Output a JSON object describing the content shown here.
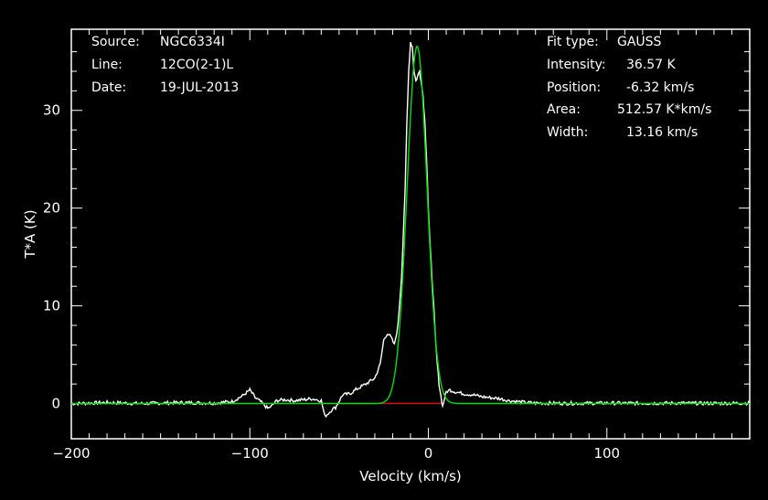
{
  "annotations": {
    "source_label": "Source:",
    "source_value": "NGC6334I",
    "line_label": "Line:",
    "line_value": "12CO(2-1)L",
    "date_label": "Date:",
    "date_value": "19-JUL-2013",
    "fit_type_label": "Fit type:",
    "fit_type_value": "GAUSS",
    "intensity_label": "Intensity:",
    "intensity_value": "36.57 K",
    "position_label": "Position:",
    "position_value": "-6.32 km/s",
    "area_label": "Area:",
    "area_value": "512.57 K*km/s",
    "width_label": "Width:",
    "width_value": "13.16 km/s"
  },
  "chart_data": {
    "type": "line",
    "xlabel": "Velocity (km/s)",
    "ylabel": "T*A (K)",
    "xlim": [
      -200,
      180
    ],
    "ylim": [
      -3.6,
      38.3
    ],
    "x_ticks": [
      -200,
      -100,
      0,
      100
    ],
    "y_ticks": [
      0,
      10,
      20,
      30
    ],
    "grid": false,
    "colors": {
      "spectrum": "#ffffff",
      "fit": "#00e000",
      "baseline": "#ff0000",
      "axes": "#ffffff",
      "background": "#000000"
    },
    "series": [
      {
        "name": "spectrum",
        "x": [
          -200,
          -180,
          -160,
          -140,
          -120,
          -110,
          -104,
          -100,
          -97,
          -94,
          -90,
          -88,
          -85,
          -80,
          -75,
          -70,
          -65,
          -60,
          -58,
          -56,
          -54,
          -52,
          -48,
          -44,
          -40,
          -35,
          -30,
          -27,
          -25,
          -23,
          -21,
          -19,
          -17,
          -15,
          -13,
          -12,
          -11,
          -10,
          -9,
          -8,
          -7,
          -6,
          -5,
          -4,
          -3,
          -2,
          -1,
          0,
          1,
          2,
          3,
          4,
          5,
          6,
          7,
          8,
          9,
          10,
          12,
          15,
          20,
          25,
          30,
          35,
          40,
          45,
          50,
          55,
          60,
          80,
          100,
          120,
          140,
          160,
          180
        ],
        "y": [
          0,
          0.1,
          0,
          0.1,
          0.05,
          0.2,
          0.8,
          1.4,
          0.6,
          0.2,
          -0.5,
          -0.3,
          0.3,
          0.4,
          0.3,
          0.4,
          0.5,
          0.3,
          -1.3,
          -1.0,
          -0.6,
          -0.4,
          0.9,
          1.0,
          1.5,
          2.0,
          2.6,
          4.0,
          6.5,
          7.2,
          6.8,
          6.0,
          8.0,
          13.0,
          22.0,
          29.0,
          34.0,
          37.0,
          36.5,
          34.0,
          33.0,
          33.5,
          34.0,
          33.0,
          31.5,
          29.0,
          25.0,
          20.0,
          16.0,
          13.0,
          10.0,
          6.5,
          4.0,
          2.0,
          0.8,
          -0.3,
          0.5,
          1.2,
          1.4,
          1.2,
          1.0,
          0.9,
          0.7,
          0.6,
          0.5,
          0.3,
          0.2,
          0.1,
          0.05,
          0.02,
          0.05,
          0.03,
          0.05,
          0.02,
          0.05
        ]
      },
      {
        "name": "gauss-fit",
        "model": "gaussian",
        "amplitude": 36.57,
        "center": -6.32,
        "fwhm": 13.16
      }
    ]
  }
}
